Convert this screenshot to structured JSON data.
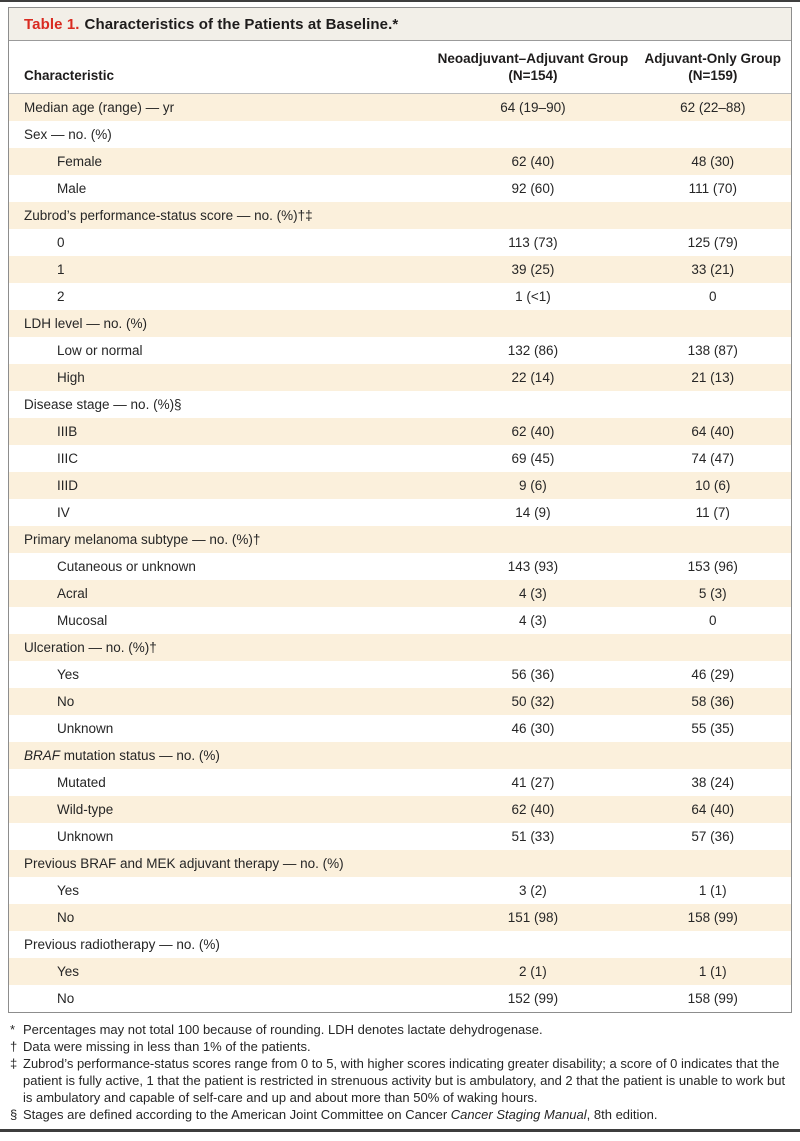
{
  "table": {
    "title_label": "Table 1.",
    "title_text": "Characteristics of the Patients at Baseline.*",
    "columns": {
      "characteristic": "Characteristic",
      "group1_line1": "Neoadjuvant–Adjuvant Group",
      "group1_line2": "(N=154)",
      "group2_line1": "Adjuvant-Only Group",
      "group2_line2": "(N=159)"
    },
    "rows": [
      {
        "label": "Median age (range) — yr",
        "indent": false,
        "v1": "64 (19–90)",
        "v2": "62 (22–88)"
      },
      {
        "label": "Sex — no. (%)",
        "indent": false,
        "v1": "",
        "v2": ""
      },
      {
        "label": "Female",
        "indent": true,
        "v1": "62 (40)",
        "v2": "48 (30)"
      },
      {
        "label": "Male",
        "indent": true,
        "v1": "92 (60)",
        "v2": "111 (70)"
      },
      {
        "label": "Zubrod’s performance-status score — no. (%)†‡",
        "indent": false,
        "v1": "",
        "v2": ""
      },
      {
        "label": "0",
        "indent": true,
        "v1": "113 (73)",
        "v2": "125 (79)"
      },
      {
        "label": "1",
        "indent": true,
        "v1": "39 (25)",
        "v2": "33 (21)"
      },
      {
        "label": "2",
        "indent": true,
        "v1": "1 (<1)",
        "v2": "0"
      },
      {
        "label": "LDH level — no. (%)",
        "indent": false,
        "v1": "",
        "v2": ""
      },
      {
        "label": "Low or normal",
        "indent": true,
        "v1": "132 (86)",
        "v2": "138 (87)"
      },
      {
        "label": "High",
        "indent": true,
        "v1": "22 (14)",
        "v2": "21 (13)"
      },
      {
        "label": "Disease stage — no. (%)§",
        "indent": false,
        "v1": "",
        "v2": ""
      },
      {
        "label": "IIIB",
        "indent": true,
        "v1": "62 (40)",
        "v2": "64 (40)"
      },
      {
        "label": "IIIC",
        "indent": true,
        "v1": "69 (45)",
        "v2": "74 (47)"
      },
      {
        "label": "IIID",
        "indent": true,
        "v1": "9 (6)",
        "v2": "10 (6)"
      },
      {
        "label": "IV",
        "indent": true,
        "v1": "14 (9)",
        "v2": "11 (7)"
      },
      {
        "label": "Primary melanoma subtype — no. (%)†",
        "indent": false,
        "v1": "",
        "v2": ""
      },
      {
        "label": "Cutaneous or unknown",
        "indent": true,
        "v1": "143 (93)",
        "v2": "153 (96)"
      },
      {
        "label": "Acral",
        "indent": true,
        "v1": "4 (3)",
        "v2": "5 (3)"
      },
      {
        "label": "Mucosal",
        "indent": true,
        "v1": "4 (3)",
        "v2": "0"
      },
      {
        "label": "Ulceration — no. (%)†",
        "indent": false,
        "v1": "",
        "v2": ""
      },
      {
        "label": "Yes",
        "indent": true,
        "v1": "56 (36)",
        "v2": "46 (29)"
      },
      {
        "label": "No",
        "indent": true,
        "v1": "50 (32)",
        "v2": "58 (36)"
      },
      {
        "label": "Unknown",
        "indent": true,
        "v1": "46 (30)",
        "v2": "55 (35)"
      },
      {
        "italic": "BRAF",
        "label": " mutation status — no. (%)",
        "indent": false,
        "v1": "",
        "v2": ""
      },
      {
        "label": "Mutated",
        "indent": true,
        "v1": "41 (27)",
        "v2": "38 (24)"
      },
      {
        "label": "Wild-type",
        "indent": true,
        "v1": "62 (40)",
        "v2": "64 (40)"
      },
      {
        "label": "Unknown",
        "indent": true,
        "v1": "51 (33)",
        "v2": "57 (36)"
      },
      {
        "label": "Previous BRAF and MEK adjuvant therapy — no. (%)",
        "indent": false,
        "v1": "",
        "v2": ""
      },
      {
        "label": "Yes",
        "indent": true,
        "v1": "3 (2)",
        "v2": "1 (1)"
      },
      {
        "label": "No",
        "indent": true,
        "v1": "151 (98)",
        "v2": "158 (99)"
      },
      {
        "label": "Previous radiotherapy — no. (%)",
        "indent": false,
        "v1": "",
        "v2": ""
      },
      {
        "label": "Yes",
        "indent": true,
        "v1": "2 (1)",
        "v2": "1 (1)"
      },
      {
        "label": "No",
        "indent": true,
        "v1": "152 (99)",
        "v2": "158 (99)"
      }
    ],
    "footnotes": [
      {
        "symbol": "*",
        "parts": [
          {
            "text": "Percentages may not total 100 because of rounding. LDH denotes lactate dehydrogenase."
          }
        ]
      },
      {
        "symbol": "†",
        "parts": [
          {
            "text": "Data were missing in less than 1% of the patients."
          }
        ]
      },
      {
        "symbol": "‡",
        "parts": [
          {
            "text": "Zubrod’s performance-status scores range from 0 to 5, with higher scores indicating greater disability; a score of 0 indicates that the patient is fully active, 1 that the patient is restricted in strenuous activity but is ambulatory, and 2 that the patient is unable to work but is ambulatory and capable of self-care and up and about more than 50% of waking hours."
          }
        ]
      },
      {
        "symbol": "§",
        "parts": [
          {
            "text": "Stages are defined according to the American Joint Committee on Cancer "
          },
          {
            "text": "Cancer Staging Manual",
            "italic": true
          },
          {
            "text": ", 8th edition."
          }
        ]
      }
    ],
    "colors": {
      "accent_red": "#d92b21",
      "row_shade": "#fbf0dc",
      "title_bar_bg": "#f2efe8",
      "border_gray": "#8d8d8d",
      "rule_dark": "#3e3e3e"
    }
  }
}
